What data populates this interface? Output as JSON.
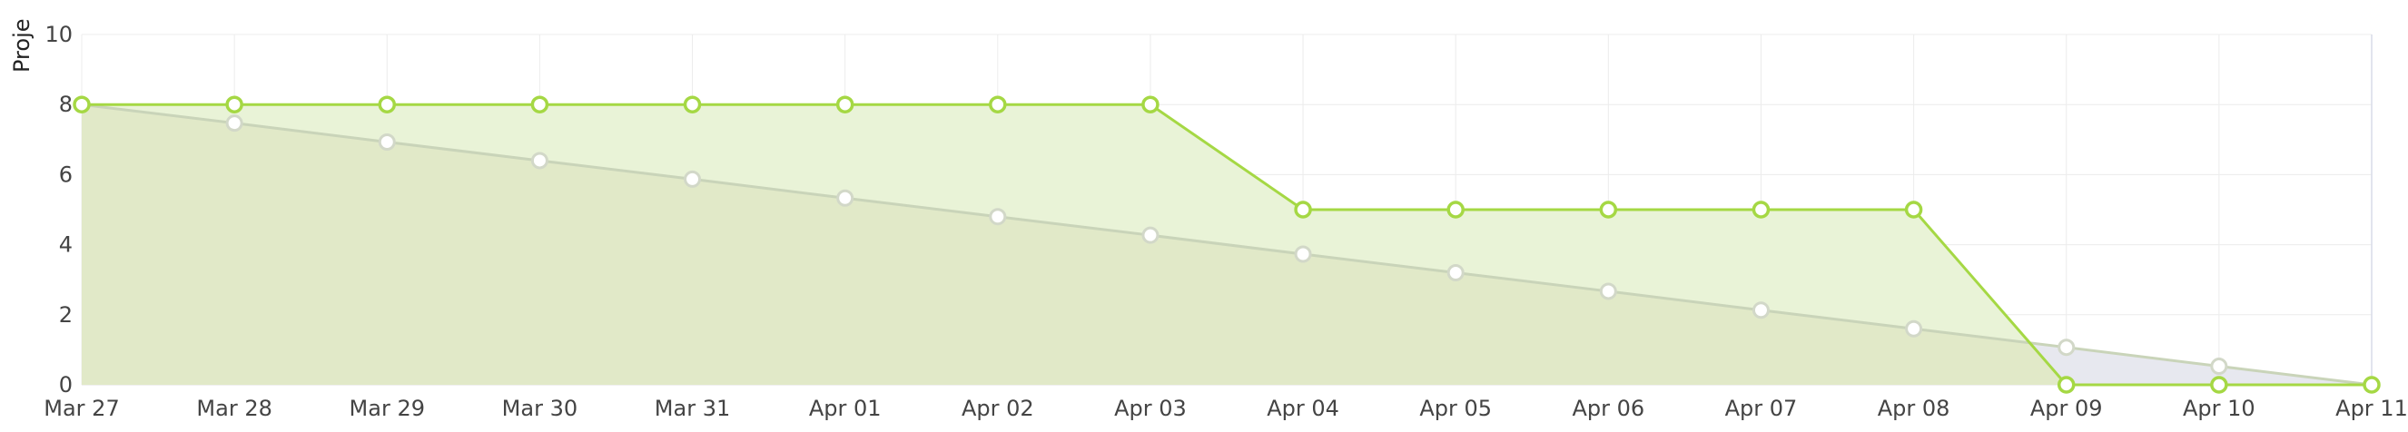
{
  "chart_data": {
    "type": "area",
    "title": "",
    "xlabel": "",
    "ylabel": "Proje",
    "ylim": [
      0,
      10
    ],
    "yticks": [
      "0",
      "2",
      "4",
      "6",
      "8",
      "10"
    ],
    "categories": [
      "Mar 27",
      "Mar 28",
      "Mar 29",
      "Mar 30",
      "Mar 31",
      "Apr 01",
      "Apr 02",
      "Apr 03",
      "Apr 04",
      "Apr 05",
      "Apr 06",
      "Apr 07",
      "Apr 08",
      "Apr 09",
      "Apr 10",
      "Apr 11"
    ],
    "series": [
      {
        "key": "ideal",
        "values": [
          8,
          7.47,
          6.93,
          6.4,
          5.87,
          5.33,
          4.8,
          4.27,
          3.73,
          3.2,
          2.67,
          2.13,
          1.6,
          1.07,
          0.53,
          0
        ],
        "line_color": "#c9d4b9",
        "fill_color": "#e7e8ef",
        "point_color": "#d2d8c8"
      },
      {
        "key": "actual",
        "values": [
          8,
          8,
          8,
          8,
          8,
          8,
          8,
          8,
          5,
          5,
          5,
          5,
          5,
          0,
          0,
          0
        ],
        "line_color": "#a5d844",
        "fill_color": "#e9f3d7",
        "point_color": "#a5d844"
      }
    ],
    "overlap_fill_color": "#e1e9c8",
    "grid": true,
    "legend": "none"
  }
}
